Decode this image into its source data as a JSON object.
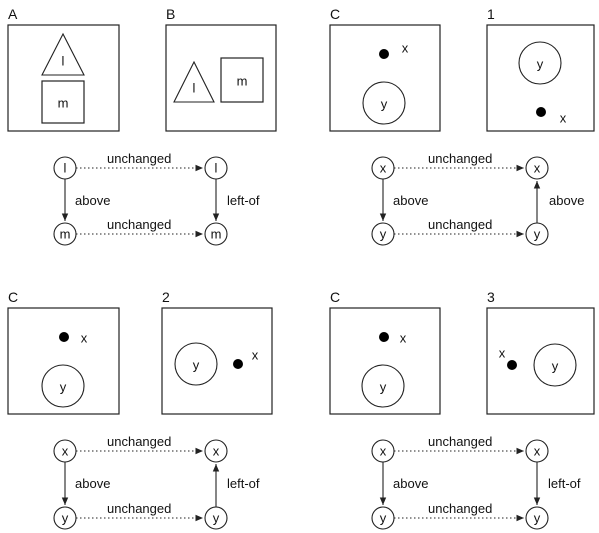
{
  "panels": {
    "A": "A",
    "B": "B",
    "C1": "C",
    "one": "1",
    "C2": "C",
    "two": "2",
    "C3": "C",
    "three": "3"
  },
  "shapes": {
    "l": "l",
    "m": "m",
    "x": "x",
    "y": "y"
  },
  "relations": {
    "unchanged": "unchanged",
    "above": "above",
    "left_of": "left-of"
  }
}
